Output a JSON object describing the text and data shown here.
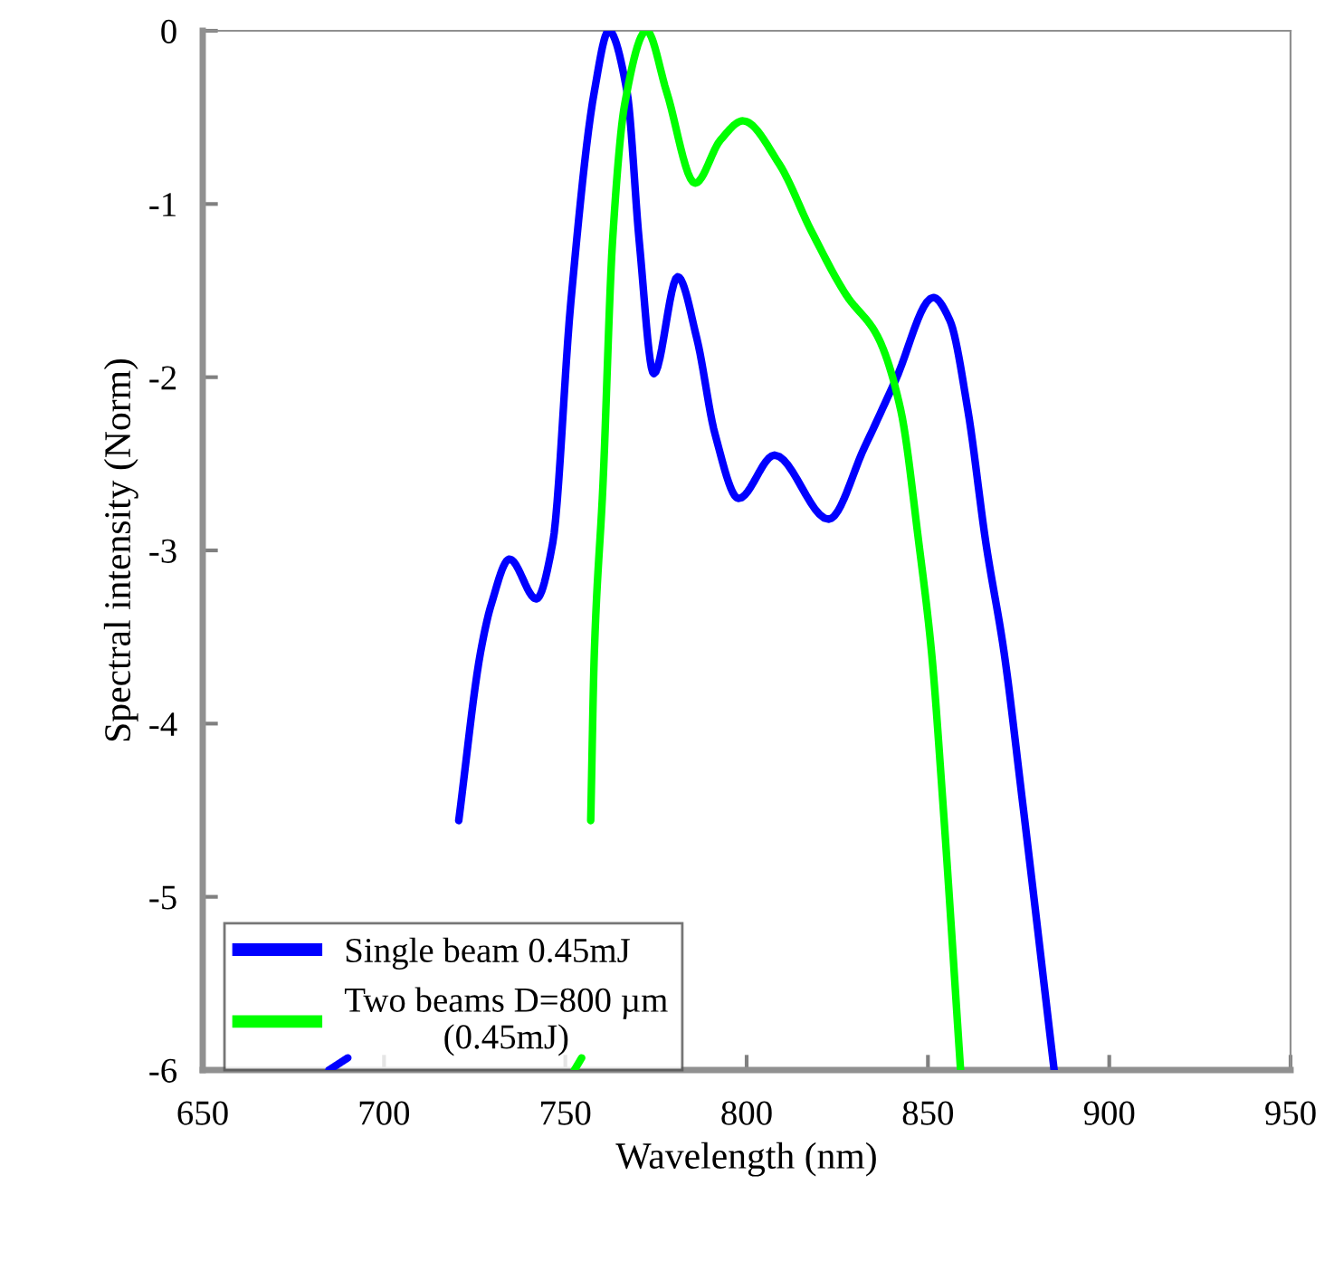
{
  "chart_data": {
    "type": "line",
    "xlabel": "Wavelength (nm)",
    "ylabel": "Spectral intensity (Norm)",
    "xlim": [
      650,
      950
    ],
    "xticks": [
      650,
      700,
      750,
      800,
      850,
      900,
      950
    ],
    "ylim": [
      -6,
      0
    ],
    "yticks": [
      -6,
      -5,
      -4,
      -3,
      -2,
      -1,
      0
    ],
    "grid": false,
    "legend": "bottom left",
    "marker": "none",
    "line_style": "solid",
    "series": [
      {
        "name": "Single beam 0.45mJ",
        "color": "#0000ff",
        "x": [
          684.8,
          690,
          700,
          720.6,
          726.6,
          729.6,
          734.6,
          742,
          746.5,
          751.5,
          758,
          762,
          767,
          770.4,
          774.4,
          781,
          786.3,
          791.3,
          797.8,
          807.7,
          822.6,
          832.6,
          841,
          851.5,
          856,
          861,
          866,
          871,
          875.9,
          884.8
        ],
        "values": [
          -6,
          -5.93,
          null,
          -4.56,
          -3.59,
          -3.31,
          -3.05,
          -3.28,
          -2.96,
          -1.57,
          -0.35,
          0,
          -0.35,
          -1.22,
          -1.98,
          -1.42,
          -1.78,
          -2.33,
          -2.7,
          -2.45,
          -2.82,
          -2.4,
          -2.02,
          -1.54,
          -1.67,
          -2.19,
          -2.96,
          -3.59,
          -4.42,
          -6
        ]
      },
      {
        "name": "Two beams D=800 µm\n(0.45mJ)",
        "color": "#00ff00",
        "x": [
          752.5,
          754.5,
          755.5,
          757,
          758,
          760.4,
          763,
          766.4,
          772.4,
          777.9,
          785.8,
          792.8,
          799,
          809,
          817.7,
          827.6,
          836,
          842.5,
          847.5,
          851,
          854,
          859
        ],
        "values": [
          -6,
          -5.93,
          null,
          -4.56,
          -3.59,
          -2.61,
          -1.22,
          -0.42,
          0,
          -0.35,
          -0.88,
          -0.63,
          -0.52,
          -0.77,
          -1.15,
          -1.53,
          -1.76,
          -2.19,
          -2.96,
          -3.59,
          -4.42,
          -6
        ]
      }
    ]
  }
}
